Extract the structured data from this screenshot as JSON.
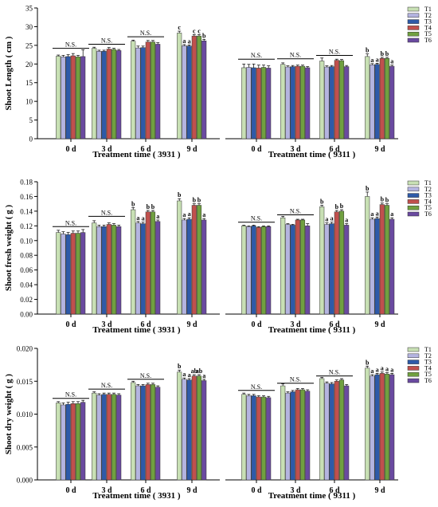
{
  "series_names": [
    "T1",
    "T2",
    "T3",
    "T4",
    "T5",
    "T6"
  ],
  "series_colors": [
    "#c8e0b4",
    "#b4b4e0",
    "#2e5aa8",
    "#c0504d",
    "#70a040",
    "#6a4aa0"
  ],
  "chart_data": [
    {
      "type": "bar",
      "ylabel": "Shoot Length ( cm )",
      "ylim": [
        0,
        35
      ],
      "yticks": [
        "0",
        "5",
        "10",
        "15",
        "20",
        "25",
        "30",
        "35"
      ],
      "groups": [
        {
          "xlabel": "Treatment time ( 3931 )",
          "categories": [
            "0 d",
            "3 d",
            "6 d",
            "9 d"
          ],
          "series": [
            {
              "name": "T1",
              "values": [
                22.1,
                24.2,
                26.1,
                28.3
              ]
            },
            {
              "name": "T2",
              "values": [
                21.9,
                23.4,
                24.3,
                24.9
              ]
            },
            {
              "name": "T3",
              "values": [
                22.0,
                23.4,
                24.4,
                24.8
              ]
            },
            {
              "name": "T4",
              "values": [
                22.2,
                24.0,
                25.9,
                27.5
              ]
            },
            {
              "name": "T5",
              "values": [
                21.9,
                23.9,
                25.9,
                27.5
              ]
            },
            {
              "name": "T6",
              "values": [
                22.0,
                23.6,
                25.3,
                26.2
              ]
            }
          ],
          "errors": [
            [
              0.3,
              0.3,
              0.3,
              0.5
            ],
            [
              0.4,
              0.3,
              0.5,
              0.3
            ],
            [
              0.5,
              0.3,
              0.4,
              0.3
            ],
            [
              0.6,
              0.4,
              0.4,
              0.4
            ],
            [
              0.4,
              0.3,
              0.4,
              0.4
            ],
            [
              1.8,
              0.3,
              0.4,
              0.4
            ]
          ],
          "annotations": [
            [
              "",
              "",
              "",
              "c"
            ],
            [
              "",
              "",
              "",
              "a"
            ],
            [
              "",
              "",
              "",
              "a"
            ],
            [
              "",
              "",
              "",
              "c"
            ],
            [
              "",
              "",
              "",
              "c"
            ],
            [
              "",
              "",
              "",
              "b"
            ]
          ],
          "ns": [
            "N.S.",
            "N.S.",
            "N.S.",
            ""
          ],
          "ns_y": [
            24.2,
            25.3,
            27.3,
            0
          ]
        },
        {
          "xlabel": "Treatment time ( 9311 )",
          "categories": [
            "0 d",
            "3 d",
            "6 d",
            "9 d"
          ],
          "series": [
            {
              "name": "T1",
              "values": [
                19.0,
                19.9,
                20.8,
                22.0
              ]
            },
            {
              "name": "T2",
              "values": [
                19.1,
                19.2,
                19.2,
                19.8
              ]
            },
            {
              "name": "T3",
              "values": [
                19.0,
                19.3,
                19.3,
                19.9
              ]
            },
            {
              "name": "T4",
              "values": [
                18.9,
                19.4,
                21.0,
                21.5
              ]
            },
            {
              "name": "T5",
              "values": [
                19.1,
                19.4,
                20.9,
                21.5
              ]
            },
            {
              "name": "T6",
              "values": [
                18.9,
                19.0,
                19.3,
                19.4
              ]
            }
          ],
          "errors": [
            [
              1.0,
              0.4,
              0.8,
              0.7
            ],
            [
              0.8,
              0.3,
              0.3,
              0.3
            ],
            [
              1.0,
              0.3,
              0.3,
              0.3
            ],
            [
              0.8,
              0.3,
              0.3,
              0.3
            ],
            [
              0.6,
              0.3,
              0.3,
              0.3
            ],
            [
              0.6,
              0.3,
              0.3,
              0.3
            ]
          ],
          "annotations": [
            [
              "",
              "",
              "",
              "b"
            ],
            [
              "",
              "",
              "",
              "a"
            ],
            [
              "",
              "",
              "",
              "a"
            ],
            [
              "",
              "",
              "",
              "b"
            ],
            [
              "",
              "",
              "",
              "b"
            ],
            [
              "",
              "",
              "",
              "a"
            ]
          ],
          "ns": [
            "N.S.",
            "N.S.",
            "N.S.",
            ""
          ],
          "ns_y": [
            21.3,
            21.4,
            22.3,
            0
          ]
        }
      ]
    },
    {
      "type": "bar",
      "ylabel": "Shoot fresh weight ( g )",
      "ylim": [
        0,
        0.18
      ],
      "yticks": [
        "0.00",
        "0.02",
        "0.04",
        "0.06",
        "0.08",
        "0.10",
        "0.12",
        "0.14",
        "0.16",
        "0.18"
      ],
      "groups": [
        {
          "xlabel": "Treatment time ( 3931 )",
          "categories": [
            "0 d",
            "3 d",
            "6 d",
            "9 d"
          ],
          "series": [
            {
              "name": "T1",
              "values": [
                0.111,
                0.124,
                0.142,
                0.154
              ]
            },
            {
              "name": "T2",
              "values": [
                0.109,
                0.119,
                0.124,
                0.128
              ]
            },
            {
              "name": "T3",
              "values": [
                0.108,
                0.119,
                0.123,
                0.129
              ]
            },
            {
              "name": "T4",
              "values": [
                0.11,
                0.122,
                0.139,
                0.148
              ]
            },
            {
              "name": "T5",
              "values": [
                0.11,
                0.121,
                0.139,
                0.148
              ]
            },
            {
              "name": "T6",
              "values": [
                0.111,
                0.119,
                0.126,
                0.128
              ]
            }
          ],
          "errors": [
            [
              0.003,
              0.003,
              0.003,
              0.003
            ],
            [
              0.003,
              0.002,
              0.002,
              0.002
            ],
            [
              0.003,
              0.002,
              0.002,
              0.002
            ],
            [
              0.003,
              0.002,
              0.002,
              0.002
            ],
            [
              0.003,
              0.002,
              0.002,
              0.002
            ],
            [
              0.004,
              0.002,
              0.002,
              0.002
            ]
          ],
          "annotations": [
            [
              "",
              "",
              "b",
              "b"
            ],
            [
              "",
              "",
              "a",
              "a"
            ],
            [
              "",
              "",
              "a",
              "a"
            ],
            [
              "",
              "",
              "b",
              "b"
            ],
            [
              "",
              "",
              "b",
              "b"
            ],
            [
              "",
              "",
              "a",
              "a"
            ]
          ],
          "ns": [
            "N.S.",
            "N.S.",
            "",
            ""
          ],
          "ns_y": [
            0.119,
            0.133,
            0,
            0
          ]
        },
        {
          "xlabel": "Treatment time ( 9311 )",
          "categories": [
            "0 d",
            "3 d",
            "6 d",
            "9 d"
          ],
          "series": [
            {
              "name": "T1",
              "values": [
                0.12,
                0.131,
                0.146,
                0.16
              ]
            },
            {
              "name": "T2",
              "values": [
                0.119,
                0.122,
                0.122,
                0.129
              ]
            },
            {
              "name": "T3",
              "values": [
                0.12,
                0.121,
                0.123,
                0.13
              ]
            },
            {
              "name": "T4",
              "values": [
                0.118,
                0.128,
                0.139,
                0.149
              ]
            },
            {
              "name": "T5",
              "values": [
                0.119,
                0.128,
                0.14,
                0.148
              ]
            },
            {
              "name": "T6",
              "values": [
                0.119,
                0.12,
                0.121,
                0.129
              ]
            }
          ],
          "errors": [
            [
              0.001,
              0.002,
              0.002,
              0.006
            ],
            [
              0.001,
              0.001,
              0.002,
              0.002
            ],
            [
              0.001,
              0.001,
              0.002,
              0.002
            ],
            [
              0.001,
              0.001,
              0.002,
              0.002
            ],
            [
              0.001,
              0.001,
              0.002,
              0.002
            ],
            [
              0.001,
              0.003,
              0.002,
              0.002
            ]
          ],
          "annotations": [
            [
              "",
              "",
              "b",
              "b"
            ],
            [
              "",
              "",
              "a",
              "a"
            ],
            [
              "",
              "",
              "a",
              "a"
            ],
            [
              "",
              "",
              "b",
              "b"
            ],
            [
              "",
              "",
              "b",
              "b"
            ],
            [
              "",
              "",
              "a",
              "a"
            ]
          ],
          "ns": [
            "N.S.",
            "N.S.",
            "",
            ""
          ],
          "ns_y": [
            0.125,
            0.135,
            0,
            0
          ]
        }
      ]
    },
    {
      "type": "bar",
      "ylabel": "Shoot dry weight ( g )",
      "ylim": [
        0,
        0.02
      ],
      "yticks": [
        "0.000",
        "0.005",
        "0.010",
        "0.015",
        "0.020"
      ],
      "groups": [
        {
          "xlabel": "Treatment time ( 3931 )",
          "categories": [
            "0 d",
            "3 d",
            "6 d",
            "9 d"
          ],
          "series": [
            {
              "name": "T1",
              "values": [
                0.0117,
                0.0132,
                0.0148,
                0.0164
              ]
            },
            {
              "name": "T2",
              "values": [
                0.0114,
                0.0129,
                0.0143,
                0.0153
              ]
            },
            {
              "name": "T3",
              "values": [
                0.0115,
                0.013,
                0.0143,
                0.0152
              ]
            },
            {
              "name": "T4",
              "values": [
                0.0116,
                0.013,
                0.0145,
                0.0158
              ]
            },
            {
              "name": "T5",
              "values": [
                0.0116,
                0.013,
                0.0145,
                0.0158
              ]
            },
            {
              "name": "T6",
              "values": [
                0.0118,
                0.0129,
                0.0141,
                0.0151
              ]
            }
          ],
          "errors": [
            [
              0.0002,
              0.0002,
              0.0002,
              0.0003
            ],
            [
              0.0003,
              0.0002,
              0.0002,
              0.0002
            ],
            [
              0.0003,
              0.0002,
              0.0002,
              0.0002
            ],
            [
              0.0003,
              0.0002,
              0.0002,
              0.0002
            ],
            [
              0.0003,
              0.0002,
              0.0002,
              0.0002
            ],
            [
              0.0003,
              0.0002,
              0.0002,
              0.0002
            ]
          ],
          "annotations": [
            [
              "",
              "",
              "",
              "b"
            ],
            [
              "",
              "",
              "",
              "a"
            ],
            [
              "",
              "",
              "",
              "a"
            ],
            [
              "",
              "",
              "",
              "ab"
            ],
            [
              "",
              "",
              "",
              "ab"
            ],
            [
              "",
              "",
              "",
              "a"
            ]
          ],
          "ns": [
            "N.S.",
            "N.S.",
            "N.S.",
            ""
          ],
          "ns_y": [
            0.0124,
            0.0138,
            0.0153,
            0
          ]
        },
        {
          "xlabel": "Treatment time ( 9311 )",
          "categories": [
            "0 d",
            "3 d",
            "6 d",
            "9 d"
          ],
          "series": [
            {
              "name": "T1",
              "values": [
                0.013,
                0.0143,
                0.0154,
                0.017
              ]
            },
            {
              "name": "T2",
              "values": [
                0.0128,
                0.0132,
                0.0147,
                0.0158
              ]
            },
            {
              "name": "T3",
              "values": [
                0.0128,
                0.0134,
                0.0146,
                0.016
              ]
            },
            {
              "name": "T4",
              "values": [
                0.0126,
                0.0137,
                0.015,
                0.0162
              ]
            },
            {
              "name": "T5",
              "values": [
                0.0126,
                0.0137,
                0.0152,
                0.0161
              ]
            },
            {
              "name": "T6",
              "values": [
                0.0125,
                0.0135,
                0.0143,
                0.016
              ]
            }
          ],
          "errors": [
            [
              0.0002,
              0.0003,
              0.0002,
              0.0003
            ],
            [
              0.0002,
              0.0002,
              0.0002,
              0.0002
            ],
            [
              0.0002,
              0.0002,
              0.0002,
              0.0002
            ],
            [
              0.0002,
              0.0002,
              0.0002,
              0.0002
            ],
            [
              0.0002,
              0.0002,
              0.0002,
              0.0002
            ],
            [
              0.0002,
              0.0002,
              0.0002,
              0.0002
            ]
          ],
          "annotations": [
            [
              "",
              "",
              "",
              "b"
            ],
            [
              "",
              "",
              "",
              "a"
            ],
            [
              "",
              "",
              "",
              "a"
            ],
            [
              "",
              "",
              "",
              "a"
            ],
            [
              "",
              "",
              "",
              "a"
            ],
            [
              "",
              "",
              "",
              "a"
            ]
          ],
          "ns": [
            "N.S.",
            "N.S.",
            "N.S.",
            ""
          ],
          "ns_y": [
            0.0136,
            0.0147,
            0.0158,
            0
          ]
        }
      ]
    }
  ]
}
